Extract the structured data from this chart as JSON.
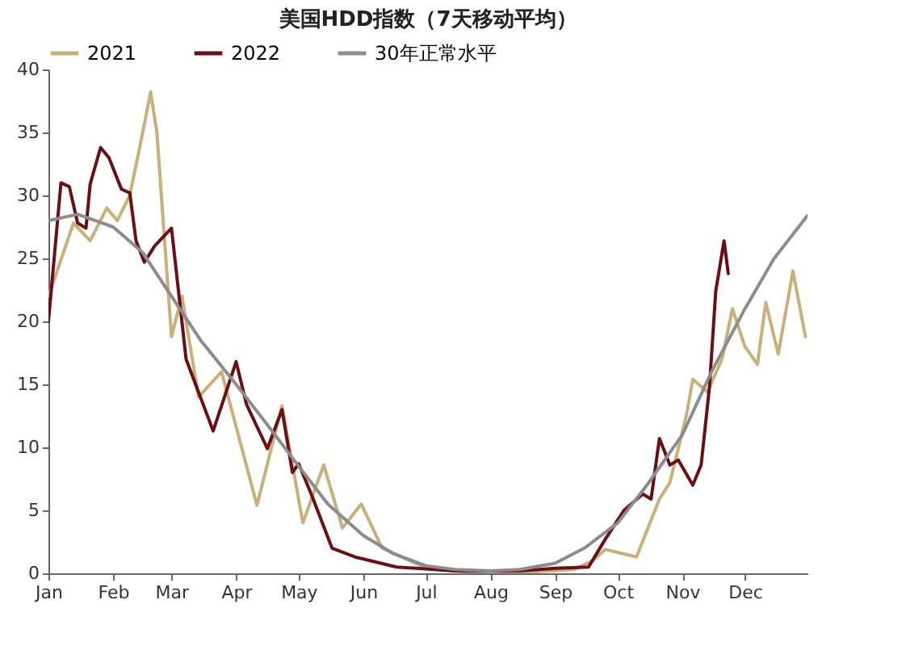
{
  "chart_data": {
    "type": "line",
    "title": "美国HDD指数（7天移动平均）",
    "xlim": [
      "--01-01",
      "--12-31"
    ],
    "xticks": [
      {
        "value": "--01-01",
        "label": "Jan"
      },
      {
        "value": "--02-01",
        "label": "Feb"
      },
      {
        "value": "--03-01",
        "label": "Mar"
      },
      {
        "value": "--04-01",
        "label": "Apr"
      },
      {
        "value": "--05-01",
        "label": "May"
      },
      {
        "value": "--06-01",
        "label": "Jun"
      },
      {
        "value": "--07-01",
        "label": "Jul"
      },
      {
        "value": "--08-01",
        "label": "Aug"
      },
      {
        "value": "--09-01",
        "label": "Sep"
      },
      {
        "value": "--10-01",
        "label": "Oct"
      },
      {
        "value": "--11-01",
        "label": "Nov"
      },
      {
        "value": "--12-01",
        "label": "Dec"
      }
    ],
    "ylim": [
      0,
      40
    ],
    "yticks": [
      0,
      5,
      10,
      15,
      20,
      25,
      30,
      35,
      40
    ],
    "legend": "top",
    "grid": false,
    "series": [
      {
        "name": "2021",
        "color": "#c8b07a",
        "x": [
          "--01-01",
          "--01-13",
          "--01-21",
          "--01-29",
          "--02-03",
          "--02-09",
          "--02-14",
          "--02-19",
          "--02-22",
          "--02-25",
          "--03-01",
          "--03-06",
          "--03-14",
          "--03-25",
          "--04-11",
          "--04-23",
          "--05-03",
          "--05-13",
          "--05-22",
          "--05-31",
          "--06-10",
          "--06-30",
          "--07-20",
          "--08-20",
          "--09-10",
          "--09-19",
          "--09-25",
          "--10-10",
          "--10-21",
          "--10-26",
          "--11-03",
          "--11-06",
          "--11-13",
          "--11-20",
          "--11-25",
          "--12-01",
          "--12-07",
          "--12-11",
          "--12-17",
          "--12-24",
          "--12-30"
        ],
        "values": [
          22,
          27.8,
          26.4,
          29,
          28,
          30,
          34,
          38.2,
          35,
          28,
          18.8,
          22,
          14,
          16,
          5.4,
          13.3,
          4,
          8.6,
          3.6,
          5.5,
          2,
          0.5,
          0.1,
          0.1,
          0.3,
          1,
          1.9,
          1.3,
          5.9,
          7.2,
          12.6,
          15.4,
          14.4,
          17,
          21,
          18,
          16.6,
          21.5,
          17.4,
          24,
          18.8
        ]
      },
      {
        "name": "2022",
        "color": "#6b0f14",
        "x": [
          "--01-01",
          "--01-07",
          "--01-11",
          "--01-15",
          "--01-19",
          "--01-21",
          "--01-26",
          "--01-30",
          "--02-05",
          "--02-09",
          "--02-12",
          "--02-16",
          "--02-21",
          "--03-01",
          "--03-08",
          "--03-21",
          "--04-01",
          "--04-06",
          "--04-16",
          "--04-23",
          "--04-28",
          "--05-01",
          "--05-07",
          "--05-17",
          "--05-28",
          "--06-17",
          "--07-15",
          "--08-15",
          "--09-01",
          "--09-17",
          "--09-25",
          "--10-04",
          "--10-13",
          "--10-17",
          "--10-21",
          "--10-26",
          "--10-30",
          "--11-06",
          "--11-10",
          "--11-14",
          "--11-17",
          "--11-21",
          "--11-23"
        ],
        "values": [
          20,
          31,
          30.7,
          27.8,
          27.4,
          30.9,
          33.8,
          33,
          30.5,
          30.2,
          26.4,
          24.7,
          26,
          27.4,
          17,
          11.3,
          16.8,
          13.4,
          9.9,
          13,
          8,
          8.7,
          6.3,
          2,
          1.3,
          0.5,
          0.2,
          0.2,
          0.4,
          0.5,
          2.7,
          5,
          6.3,
          5.9,
          10.7,
          8.6,
          9,
          7,
          8.6,
          14.8,
          22.4,
          26.4,
          23.8
        ]
      },
      {
        "name": "30年正常水平",
        "color": "#8c8c8c",
        "x": [
          "--01-01",
          "--01-15",
          "--02-01",
          "--02-15",
          "--03-01",
          "--03-15",
          "--04-01",
          "--04-15",
          "--05-01",
          "--05-15",
          "--06-01",
          "--06-15",
          "--07-01",
          "--07-15",
          "--08-01",
          "--08-15",
          "--09-01",
          "--09-15",
          "--10-01",
          "--10-15",
          "--11-01",
          "--11-15",
          "--12-01",
          "--12-15",
          "--12-31"
        ],
        "values": [
          28,
          28.5,
          27.5,
          25.5,
          22,
          18.5,
          15,
          12,
          8.5,
          5.5,
          3,
          1.6,
          0.6,
          0.3,
          0.2,
          0.3,
          0.8,
          2,
          4,
          7,
          11,
          16,
          21,
          25,
          28.4
        ]
      }
    ]
  }
}
